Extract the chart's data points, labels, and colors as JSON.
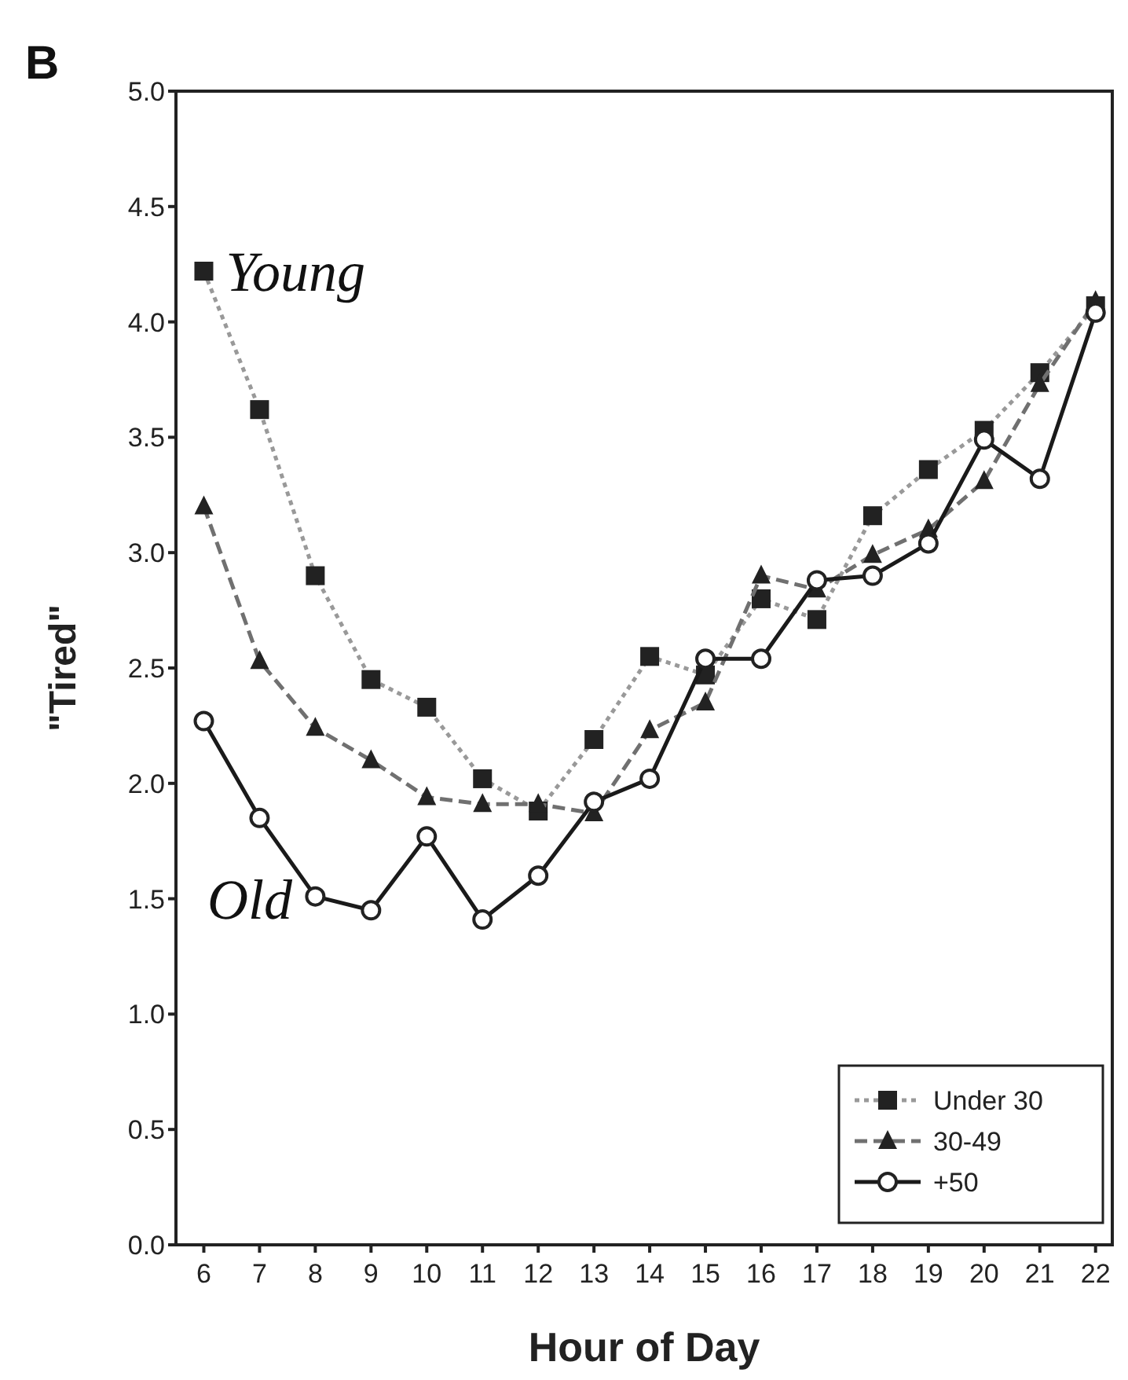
{
  "chart_data": {
    "type": "line",
    "xlabel": "Hour of Day",
    "ylabel": "\"Tired\"",
    "x": [
      6,
      7,
      8,
      9,
      10,
      11,
      12,
      13,
      14,
      15,
      16,
      17,
      18,
      19,
      20,
      21,
      22
    ],
    "xlim": [
      5.5,
      22.3
    ],
    "xticks": [
      6,
      7,
      8,
      9,
      10,
      11,
      12,
      13,
      14,
      15,
      16,
      17,
      18,
      19,
      20,
      21,
      22
    ],
    "ylim": [
      0,
      5
    ],
    "yticks": [
      {
        "value": 0,
        "label": "0.0"
      },
      {
        "value": 0.5,
        "label": "0.5"
      },
      {
        "value": 1,
        "label": "1.0"
      },
      {
        "value": 1.5,
        "label": "1.5"
      },
      {
        "value": 2,
        "label": "2.0"
      },
      {
        "value": 2.5,
        "label": "2.5"
      },
      {
        "value": 3,
        "label": "3.0"
      },
      {
        "value": 3.5,
        "label": "3.5"
      },
      {
        "value": 4,
        "label": "4.0"
      },
      {
        "value": 4.5,
        "label": "4.5"
      },
      {
        "value": 5,
        "label": "5.0"
      }
    ],
    "grid": false,
    "legend": "bottom right",
    "series": [
      {
        "name": "Under 30",
        "color": "#999999",
        "marker": "square",
        "line_style": "dotted",
        "values": [
          4.22,
          3.62,
          2.9,
          2.45,
          2.33,
          2.02,
          1.88,
          2.19,
          2.55,
          2.47,
          2.8,
          2.71,
          3.16,
          3.36,
          3.53,
          3.78,
          4.07
        ]
      },
      {
        "name": "30-49",
        "color": "#707070",
        "marker": "triangle",
        "line_style": "dashed",
        "values": [
          3.2,
          2.53,
          2.24,
          2.1,
          1.94,
          1.91,
          1.91,
          1.87,
          2.23,
          2.35,
          2.9,
          2.84,
          2.99,
          3.1,
          3.31,
          3.73,
          4.09
        ]
      },
      {
        "name": "+50",
        "color": "#1a1a1a",
        "marker": "circle",
        "line_style": "solid",
        "values": [
          2.27,
          1.85,
          1.51,
          1.45,
          1.77,
          1.41,
          1.6,
          1.92,
          2.02,
          2.54,
          2.54,
          2.88,
          2.9,
          3.04,
          3.49,
          3.32,
          4.04
        ]
      }
    ],
    "annotations": [
      "B",
      {
        "text": "Young",
        "x": 6,
        "y": 4.22
      },
      "Old"
    ]
  }
}
